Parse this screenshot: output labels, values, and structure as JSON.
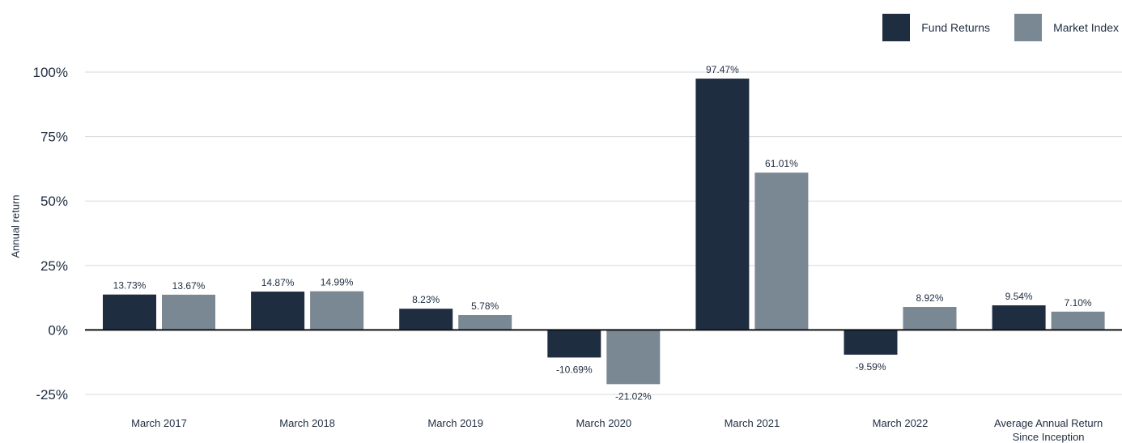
{
  "chart_data": {
    "type": "bar",
    "categories": [
      "March 2017",
      "March 2018",
      "March 2019",
      "March 2020",
      "March 2021",
      "March 2022",
      "Average Annual Return Since Inception"
    ],
    "series": [
      {
        "name": "Fund Returns",
        "color": "#1f2d40",
        "values": [
          13.73,
          14.87,
          8.23,
          -10.69,
          97.47,
          -9.59,
          9.54
        ],
        "labels": [
          "13.73%",
          "14.87%",
          "8.23%",
          "-10.69%",
          "97.47%",
          "-9.59%",
          "9.54%"
        ]
      },
      {
        "name": "Market Index",
        "color": "#7a8894",
        "values": [
          13.67,
          14.99,
          5.78,
          -21.02,
          61.01,
          8.92,
          7.1
        ],
        "labels": [
          "13.67%",
          "14.99%",
          "5.78%",
          "-21.02%",
          "61.01%",
          "8.92%",
          "7.10%"
        ]
      }
    ],
    "yticks": [
      -25,
      0,
      25,
      50,
      75,
      100
    ],
    "ytick_labels": [
      "-25%",
      "0%",
      "25%",
      "50%",
      "75%",
      "100%"
    ],
    "ylim": [
      -25,
      100
    ],
    "xlabel": "",
    "ylabel": "Annual return",
    "grid": true,
    "legend_position": "top-right"
  }
}
